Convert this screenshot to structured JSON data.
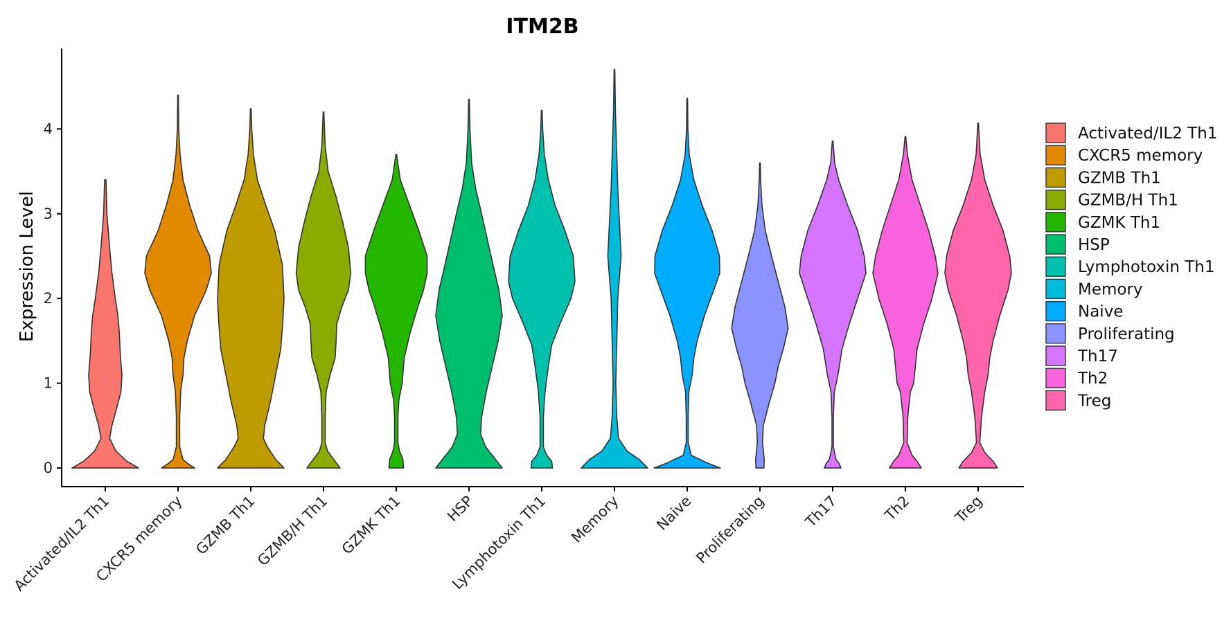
{
  "chart_data": {
    "type": "violin",
    "title": "ITM2B",
    "xlabel": "",
    "ylabel": "Expression Level",
    "ylim": [
      -0.22,
      4.95
    ],
    "yticks": [
      0,
      1,
      2,
      3,
      4
    ],
    "legend_position": "right",
    "categories": [
      "Activated/IL2 Th1",
      "CXCR5 memory",
      "GZMB Th1",
      "GZMB/H Th1",
      "GZMK Th1",
      "HSP",
      "Lymphotoxin Th1",
      "Memory",
      "Naive",
      "Proliferating",
      "Th17",
      "Th2",
      "Treg"
    ],
    "colors": [
      "#F8766D",
      "#E18A00",
      "#BE9C00",
      "#8CAB00",
      "#24B700",
      "#00BE70",
      "#00C1AB",
      "#00BBDA",
      "#00ACFC",
      "#8B93FF",
      "#D575FE",
      "#F962DD",
      "#FF65AC"
    ],
    "series": [
      {
        "name": "Activated/IL2 Th1",
        "max": 3.4,
        "profile": [
          [
            0,
            1.0
          ],
          [
            0.08,
            0.65
          ],
          [
            0.2,
            0.32
          ],
          [
            0.35,
            0.13
          ],
          [
            0.5,
            0.2
          ],
          [
            0.7,
            0.34
          ],
          [
            0.9,
            0.47
          ],
          [
            1.1,
            0.5
          ],
          [
            1.35,
            0.45
          ],
          [
            1.6,
            0.42
          ],
          [
            1.8,
            0.38
          ],
          [
            2.0,
            0.3
          ],
          [
            2.3,
            0.2
          ],
          [
            2.6,
            0.13
          ],
          [
            3.0,
            0.05
          ],
          [
            3.4,
            0.02
          ]
        ]
      },
      {
        "name": "CXCR5 memory",
        "max": 4.4,
        "profile": [
          [
            0,
            0.5
          ],
          [
            0.05,
            0.3
          ],
          [
            0.1,
            0.15
          ],
          [
            0.25,
            0.05
          ],
          [
            0.6,
            0.05
          ],
          [
            0.9,
            0.08
          ],
          [
            1.1,
            0.15
          ],
          [
            1.3,
            0.18
          ],
          [
            1.5,
            0.28
          ],
          [
            1.8,
            0.5
          ],
          [
            2.1,
            0.85
          ],
          [
            2.3,
            1.0
          ],
          [
            2.5,
            0.95
          ],
          [
            2.8,
            0.6
          ],
          [
            3.1,
            0.35
          ],
          [
            3.4,
            0.15
          ],
          [
            3.7,
            0.06
          ],
          [
            4.0,
            0.02
          ],
          [
            4.4,
            0.01
          ]
        ]
      },
      {
        "name": "GZMB Th1",
        "max": 4.24,
        "profile": [
          [
            0,
            1.0
          ],
          [
            0.1,
            0.75
          ],
          [
            0.25,
            0.5
          ],
          [
            0.35,
            0.38
          ],
          [
            0.5,
            0.42
          ],
          [
            0.8,
            0.6
          ],
          [
            1.1,
            0.75
          ],
          [
            1.4,
            0.9
          ],
          [
            1.7,
            0.96
          ],
          [
            2.0,
            1.0
          ],
          [
            2.4,
            0.95
          ],
          [
            2.8,
            0.72
          ],
          [
            3.1,
            0.45
          ],
          [
            3.4,
            0.2
          ],
          [
            3.7,
            0.08
          ],
          [
            4.0,
            0.03
          ],
          [
            4.24,
            0.01
          ]
        ]
      },
      {
        "name": "GZMB/H Th1",
        "max": 4.2,
        "profile": [
          [
            0,
            0.5
          ],
          [
            0.08,
            0.35
          ],
          [
            0.2,
            0.12
          ],
          [
            0.3,
            0.05
          ],
          [
            0.6,
            0.05
          ],
          [
            0.9,
            0.08
          ],
          [
            1.1,
            0.2
          ],
          [
            1.3,
            0.35
          ],
          [
            1.5,
            0.38
          ],
          [
            1.7,
            0.4
          ],
          [
            1.9,
            0.55
          ],
          [
            2.1,
            0.75
          ],
          [
            2.3,
            0.82
          ],
          [
            2.6,
            0.75
          ],
          [
            2.9,
            0.58
          ],
          [
            3.2,
            0.38
          ],
          [
            3.5,
            0.14
          ],
          [
            3.8,
            0.05
          ],
          [
            4.2,
            0.01
          ]
        ]
      },
      {
        "name": "GZMK Th1",
        "max": 3.7,
        "profile": [
          [
            0,
            0.22
          ],
          [
            0.1,
            0.2
          ],
          [
            0.2,
            0.1
          ],
          [
            0.3,
            0.05
          ],
          [
            0.6,
            0.05
          ],
          [
            0.8,
            0.08
          ],
          [
            1.0,
            0.18
          ],
          [
            1.3,
            0.24
          ],
          [
            1.6,
            0.42
          ],
          [
            1.9,
            0.65
          ],
          [
            2.1,
            0.82
          ],
          [
            2.3,
            0.93
          ],
          [
            2.5,
            0.93
          ],
          [
            2.8,
            0.68
          ],
          [
            3.1,
            0.4
          ],
          [
            3.4,
            0.12
          ],
          [
            3.7,
            0.01
          ]
        ]
      },
      {
        "name": "HSP",
        "max": 4.35,
        "profile": [
          [
            0,
            1.0
          ],
          [
            0.1,
            0.8
          ],
          [
            0.25,
            0.5
          ],
          [
            0.4,
            0.35
          ],
          [
            0.6,
            0.38
          ],
          [
            0.9,
            0.52
          ],
          [
            1.2,
            0.7
          ],
          [
            1.5,
            0.88
          ],
          [
            1.8,
            1.0
          ],
          [
            2.1,
            0.9
          ],
          [
            2.4,
            0.72
          ],
          [
            2.7,
            0.55
          ],
          [
            3.0,
            0.38
          ],
          [
            3.3,
            0.2
          ],
          [
            3.6,
            0.08
          ],
          [
            4.0,
            0.03
          ],
          [
            4.35,
            0.01
          ]
        ]
      },
      {
        "name": "Lymphotoxin Th1",
        "max": 4.22,
        "profile": [
          [
            0,
            0.32
          ],
          [
            0.08,
            0.3
          ],
          [
            0.15,
            0.15
          ],
          [
            0.25,
            0.05
          ],
          [
            0.6,
            0.05
          ],
          [
            0.9,
            0.1
          ],
          [
            1.2,
            0.2
          ],
          [
            1.45,
            0.3
          ],
          [
            1.7,
            0.55
          ],
          [
            2.0,
            0.88
          ],
          [
            2.2,
            1.0
          ],
          [
            2.5,
            0.95
          ],
          [
            2.8,
            0.7
          ],
          [
            3.1,
            0.4
          ],
          [
            3.4,
            0.2
          ],
          [
            3.7,
            0.08
          ],
          [
            4.0,
            0.03
          ],
          [
            4.22,
            0.01
          ]
        ]
      },
      {
        "name": "Memory",
        "max": 4.7,
        "profile": [
          [
            0,
            1.0
          ],
          [
            0.1,
            0.75
          ],
          [
            0.2,
            0.38
          ],
          [
            0.35,
            0.12
          ],
          [
            0.6,
            0.07
          ],
          [
            1.0,
            0.04
          ],
          [
            1.5,
            0.07
          ],
          [
            2.0,
            0.1
          ],
          [
            2.5,
            0.2
          ],
          [
            2.9,
            0.15
          ],
          [
            3.3,
            0.1
          ],
          [
            3.8,
            0.06
          ],
          [
            4.2,
            0.03
          ],
          [
            4.7,
            0.01
          ]
        ]
      },
      {
        "name": "Naive",
        "max": 4.36,
        "profile": [
          [
            0,
            1.0
          ],
          [
            0.06,
            0.6
          ],
          [
            0.15,
            0.12
          ],
          [
            0.3,
            0.03
          ],
          [
            0.6,
            0.03
          ],
          [
            0.9,
            0.05
          ],
          [
            1.1,
            0.15
          ],
          [
            1.3,
            0.2
          ],
          [
            1.5,
            0.3
          ],
          [
            1.8,
            0.52
          ],
          [
            2.1,
            0.8
          ],
          [
            2.3,
            0.98
          ],
          [
            2.5,
            0.97
          ],
          [
            2.8,
            0.75
          ],
          [
            3.1,
            0.45
          ],
          [
            3.4,
            0.2
          ],
          [
            3.7,
            0.06
          ],
          [
            4.0,
            0.02
          ],
          [
            4.36,
            0.01
          ]
        ]
      },
      {
        "name": "Proliferating",
        "max": 3.6,
        "profile": [
          [
            0,
            0.12
          ],
          [
            0.1,
            0.13
          ],
          [
            0.3,
            0.08
          ],
          [
            0.5,
            0.1
          ],
          [
            0.8,
            0.3
          ],
          [
            1.0,
            0.45
          ],
          [
            1.2,
            0.55
          ],
          [
            1.4,
            0.7
          ],
          [
            1.65,
            0.85
          ],
          [
            1.9,
            0.75
          ],
          [
            2.2,
            0.55
          ],
          [
            2.5,
            0.35
          ],
          [
            2.8,
            0.16
          ],
          [
            3.1,
            0.06
          ],
          [
            3.4,
            0.02
          ],
          [
            3.6,
            0.01
          ]
        ]
      },
      {
        "name": "Th17",
        "max": 3.86,
        "profile": [
          [
            0,
            0.25
          ],
          [
            0.05,
            0.2
          ],
          [
            0.1,
            0.1
          ],
          [
            0.25,
            0.02
          ],
          [
            0.6,
            0.02
          ],
          [
            0.9,
            0.05
          ],
          [
            1.1,
            0.16
          ],
          [
            1.4,
            0.28
          ],
          [
            1.7,
            0.5
          ],
          [
            2.0,
            0.75
          ],
          [
            2.3,
            1.0
          ],
          [
            2.5,
            0.95
          ],
          [
            2.8,
            0.75
          ],
          [
            3.1,
            0.45
          ],
          [
            3.4,
            0.18
          ],
          [
            3.6,
            0.06
          ],
          [
            3.86,
            0.01
          ]
        ]
      },
      {
        "name": "Th2",
        "max": 3.91,
        "profile": [
          [
            0,
            0.48
          ],
          [
            0.08,
            0.35
          ],
          [
            0.15,
            0.2
          ],
          [
            0.3,
            0.05
          ],
          [
            0.6,
            0.07
          ],
          [
            0.9,
            0.15
          ],
          [
            1.0,
            0.25
          ],
          [
            1.2,
            0.3
          ],
          [
            1.4,
            0.35
          ],
          [
            1.7,
            0.55
          ],
          [
            2.0,
            0.8
          ],
          [
            2.3,
            0.98
          ],
          [
            2.5,
            0.9
          ],
          [
            2.8,
            0.7
          ],
          [
            3.1,
            0.45
          ],
          [
            3.4,
            0.2
          ],
          [
            3.7,
            0.06
          ],
          [
            3.91,
            0.01
          ]
        ]
      },
      {
        "name": "Treg",
        "max": 4.07,
        "profile": [
          [
            0,
            0.58
          ],
          [
            0.08,
            0.45
          ],
          [
            0.18,
            0.2
          ],
          [
            0.3,
            0.05
          ],
          [
            0.6,
            0.1
          ],
          [
            0.9,
            0.2
          ],
          [
            1.1,
            0.3
          ],
          [
            1.3,
            0.35
          ],
          [
            1.5,
            0.45
          ],
          [
            1.8,
            0.65
          ],
          [
            2.1,
            0.9
          ],
          [
            2.3,
            1.0
          ],
          [
            2.5,
            0.95
          ],
          [
            2.8,
            0.75
          ],
          [
            3.1,
            0.45
          ],
          [
            3.4,
            0.2
          ],
          [
            3.7,
            0.06
          ],
          [
            4.07,
            0.01
          ]
        ]
      }
    ]
  }
}
